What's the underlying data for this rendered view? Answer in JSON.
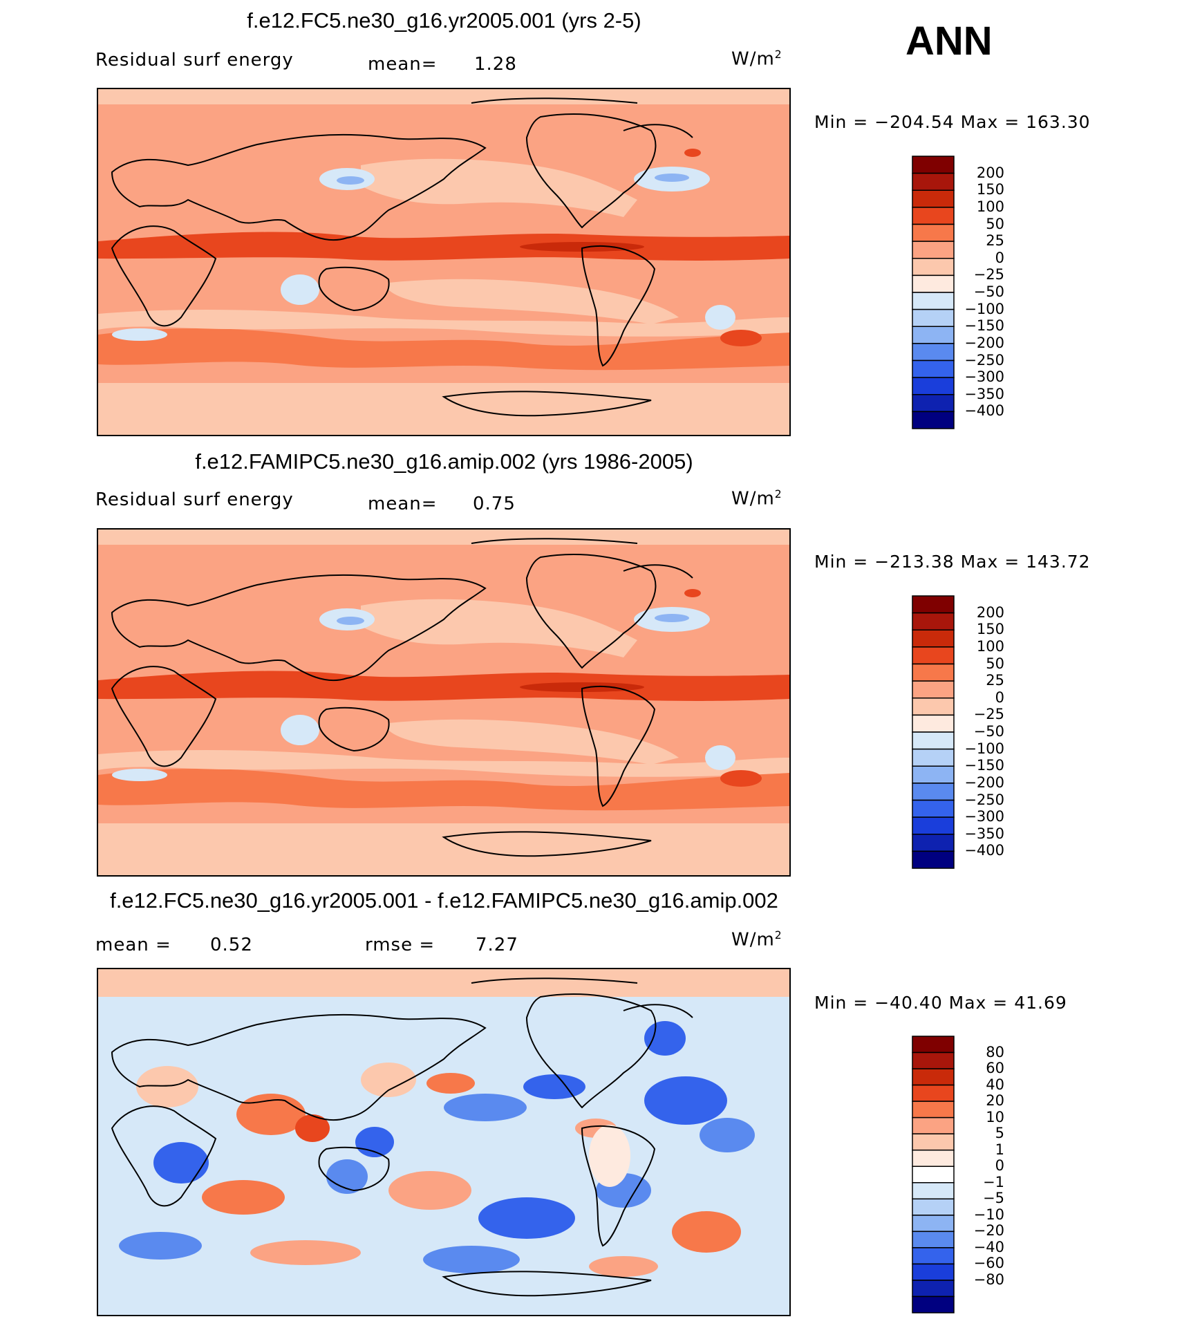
{
  "season": "ANN",
  "colors": {
    "warm_palette": [
      "#7f0000",
      "#a8160b",
      "#c92a0a",
      "#e8461e",
      "#f7784a",
      "#fba383",
      "#fcc8ad",
      "#feeadf",
      "#d6e8f8",
      "#b5d1f6",
      "#8db4f3",
      "#5a8aef",
      "#3463ec",
      "#1a3edb",
      "#0e22b0",
      "#000080"
    ],
    "diff_palette": [
      "#7f0000",
      "#a8160b",
      "#c92a0a",
      "#e8461e",
      "#f7784a",
      "#fba383",
      "#fcc8ad",
      "#feeadf",
      "#ffffff",
      "#d6e8f8",
      "#b5d1f6",
      "#8db4f3",
      "#5a8aef",
      "#3463ec",
      "#1a3edb",
      "#0e22b0",
      "#000080"
    ]
  },
  "panels": [
    {
      "title": "f.e12.FC5.ne30_g16.yr2005.001 (yrs 2-5)",
      "left_label": "Residual surf energy",
      "mean_label": "mean=",
      "mean_value": "1.28",
      "units_base": "W/m",
      "units_exp": "2",
      "minmax": "Min = −204.54 Max = 163.30",
      "colorbar_labels": [
        "200",
        "150",
        "100",
        "50",
        "25",
        "0",
        "−25",
        "−50",
        "−100",
        "−150",
        "−200",
        "−250",
        "−300",
        "−350",
        "−400"
      ]
    },
    {
      "title": "f.e12.FAMIPC5.ne30_g16.amip.002 (yrs 1986-2005)",
      "left_label": "Residual surf energy",
      "mean_label": "mean=",
      "mean_value": "0.75",
      "units_base": "W/m",
      "units_exp": "2",
      "minmax": "Min = −213.38 Max = 143.72",
      "colorbar_labels": [
        "200",
        "150",
        "100",
        "50",
        "25",
        "0",
        "−25",
        "−50",
        "−100",
        "−150",
        "−200",
        "−250",
        "−300",
        "−350",
        "−400"
      ]
    },
    {
      "title": "f.e12.FC5.ne30_g16.yr2005.001 - f.e12.FAMIPC5.ne30_g16.amip.002",
      "left_label": "mean =",
      "mean_label": "",
      "mean_value": "0.52",
      "rmse_label": "rmse =",
      "rmse_value": "7.27",
      "units_base": "W/m",
      "units_exp": "2",
      "minmax": "Min = −40.40 Max =  41.69",
      "colorbar_labels": [
        "80",
        "60",
        "40",
        "20",
        "10",
        "5",
        "1",
        "0",
        "−1",
        "−5",
        "−10",
        "−20",
        "−40",
        "−60",
        "−80"
      ]
    }
  ],
  "chart_data": [
    {
      "type": "heatmap",
      "title": "f.e12.FC5.ne30_g16.yr2005.001 (yrs 2-5)",
      "variable": "Residual surf energy",
      "units": "W/m2",
      "mean": 1.28,
      "min": -204.54,
      "max": 163.3,
      "levels": [
        200,
        150,
        100,
        50,
        25,
        0,
        -25,
        -50,
        -100,
        -150,
        -200,
        -250,
        -300,
        -350,
        -400
      ]
    },
    {
      "type": "heatmap",
      "title": "f.e12.FAMIPC5.ne30_g16.amip.002 (yrs 1986-2005)",
      "variable": "Residual surf energy",
      "units": "W/m2",
      "mean": 0.75,
      "min": -213.38,
      "max": 143.72,
      "levels": [
        200,
        150,
        100,
        50,
        25,
        0,
        -25,
        -50,
        -100,
        -150,
        -200,
        -250,
        -300,
        -350,
        -400
      ]
    },
    {
      "type": "heatmap",
      "title": "f.e12.FC5.ne30_g16.yr2005.001 - f.e12.FAMIPC5.ne30_g16.amip.002",
      "units": "W/m2",
      "mean": 0.52,
      "rmse": 7.27,
      "min": -40.4,
      "max": 41.69,
      "levels": [
        80,
        60,
        40,
        20,
        10,
        5,
        1,
        0,
        -1,
        -5,
        -10,
        -20,
        -40,
        -60,
        -80
      ]
    }
  ]
}
